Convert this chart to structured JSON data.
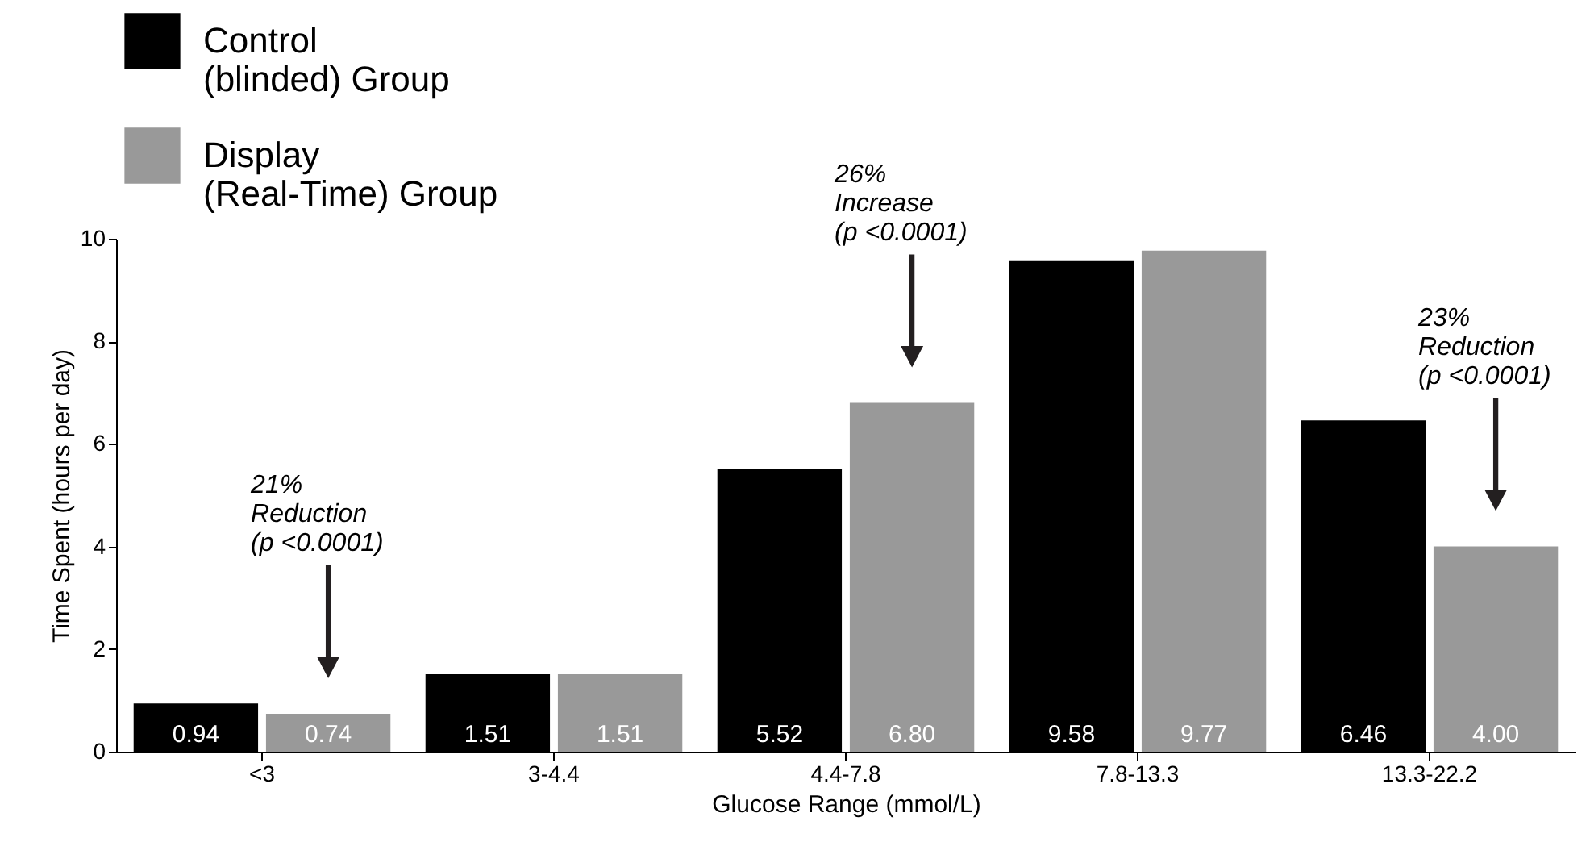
{
  "chart_data": {
    "type": "bar",
    "xlabel": "Glucose Range (mmol/L)",
    "ylabel": "Time Spent (hours per day)",
    "categories": [
      "<3",
      "3-4.4",
      "4.4-7.8",
      "7.8-13.3",
      "13.3-22.2"
    ],
    "series": [
      {
        "name": "Control\n(blinded) Group",
        "color": "#000000",
        "values": [
          0.94,
          1.51,
          5.52,
          9.58,
          6.46
        ],
        "value_labels": [
          "0.94",
          "1.51",
          "5.52",
          "9.58",
          "6.46"
        ]
      },
      {
        "name": "Display\n(Real-Time) Group",
        "color": "#999999",
        "values": [
          0.74,
          1.51,
          6.8,
          9.77,
          4.0
        ],
        "value_labels": [
          "0.74",
          "1.51",
          "6.80",
          "9.77",
          "4.00"
        ]
      }
    ],
    "ylim": [
      0,
      10
    ],
    "yticks": [
      0,
      2,
      4,
      6,
      8,
      10
    ],
    "grid": false,
    "legend": "top left",
    "annotations": [
      "21%\nReduction\n(p <0.0001)",
      "26%\nIncrease\n(p <0.0001)",
      "23%\nReduction\n(p <0.0001)"
    ]
  }
}
